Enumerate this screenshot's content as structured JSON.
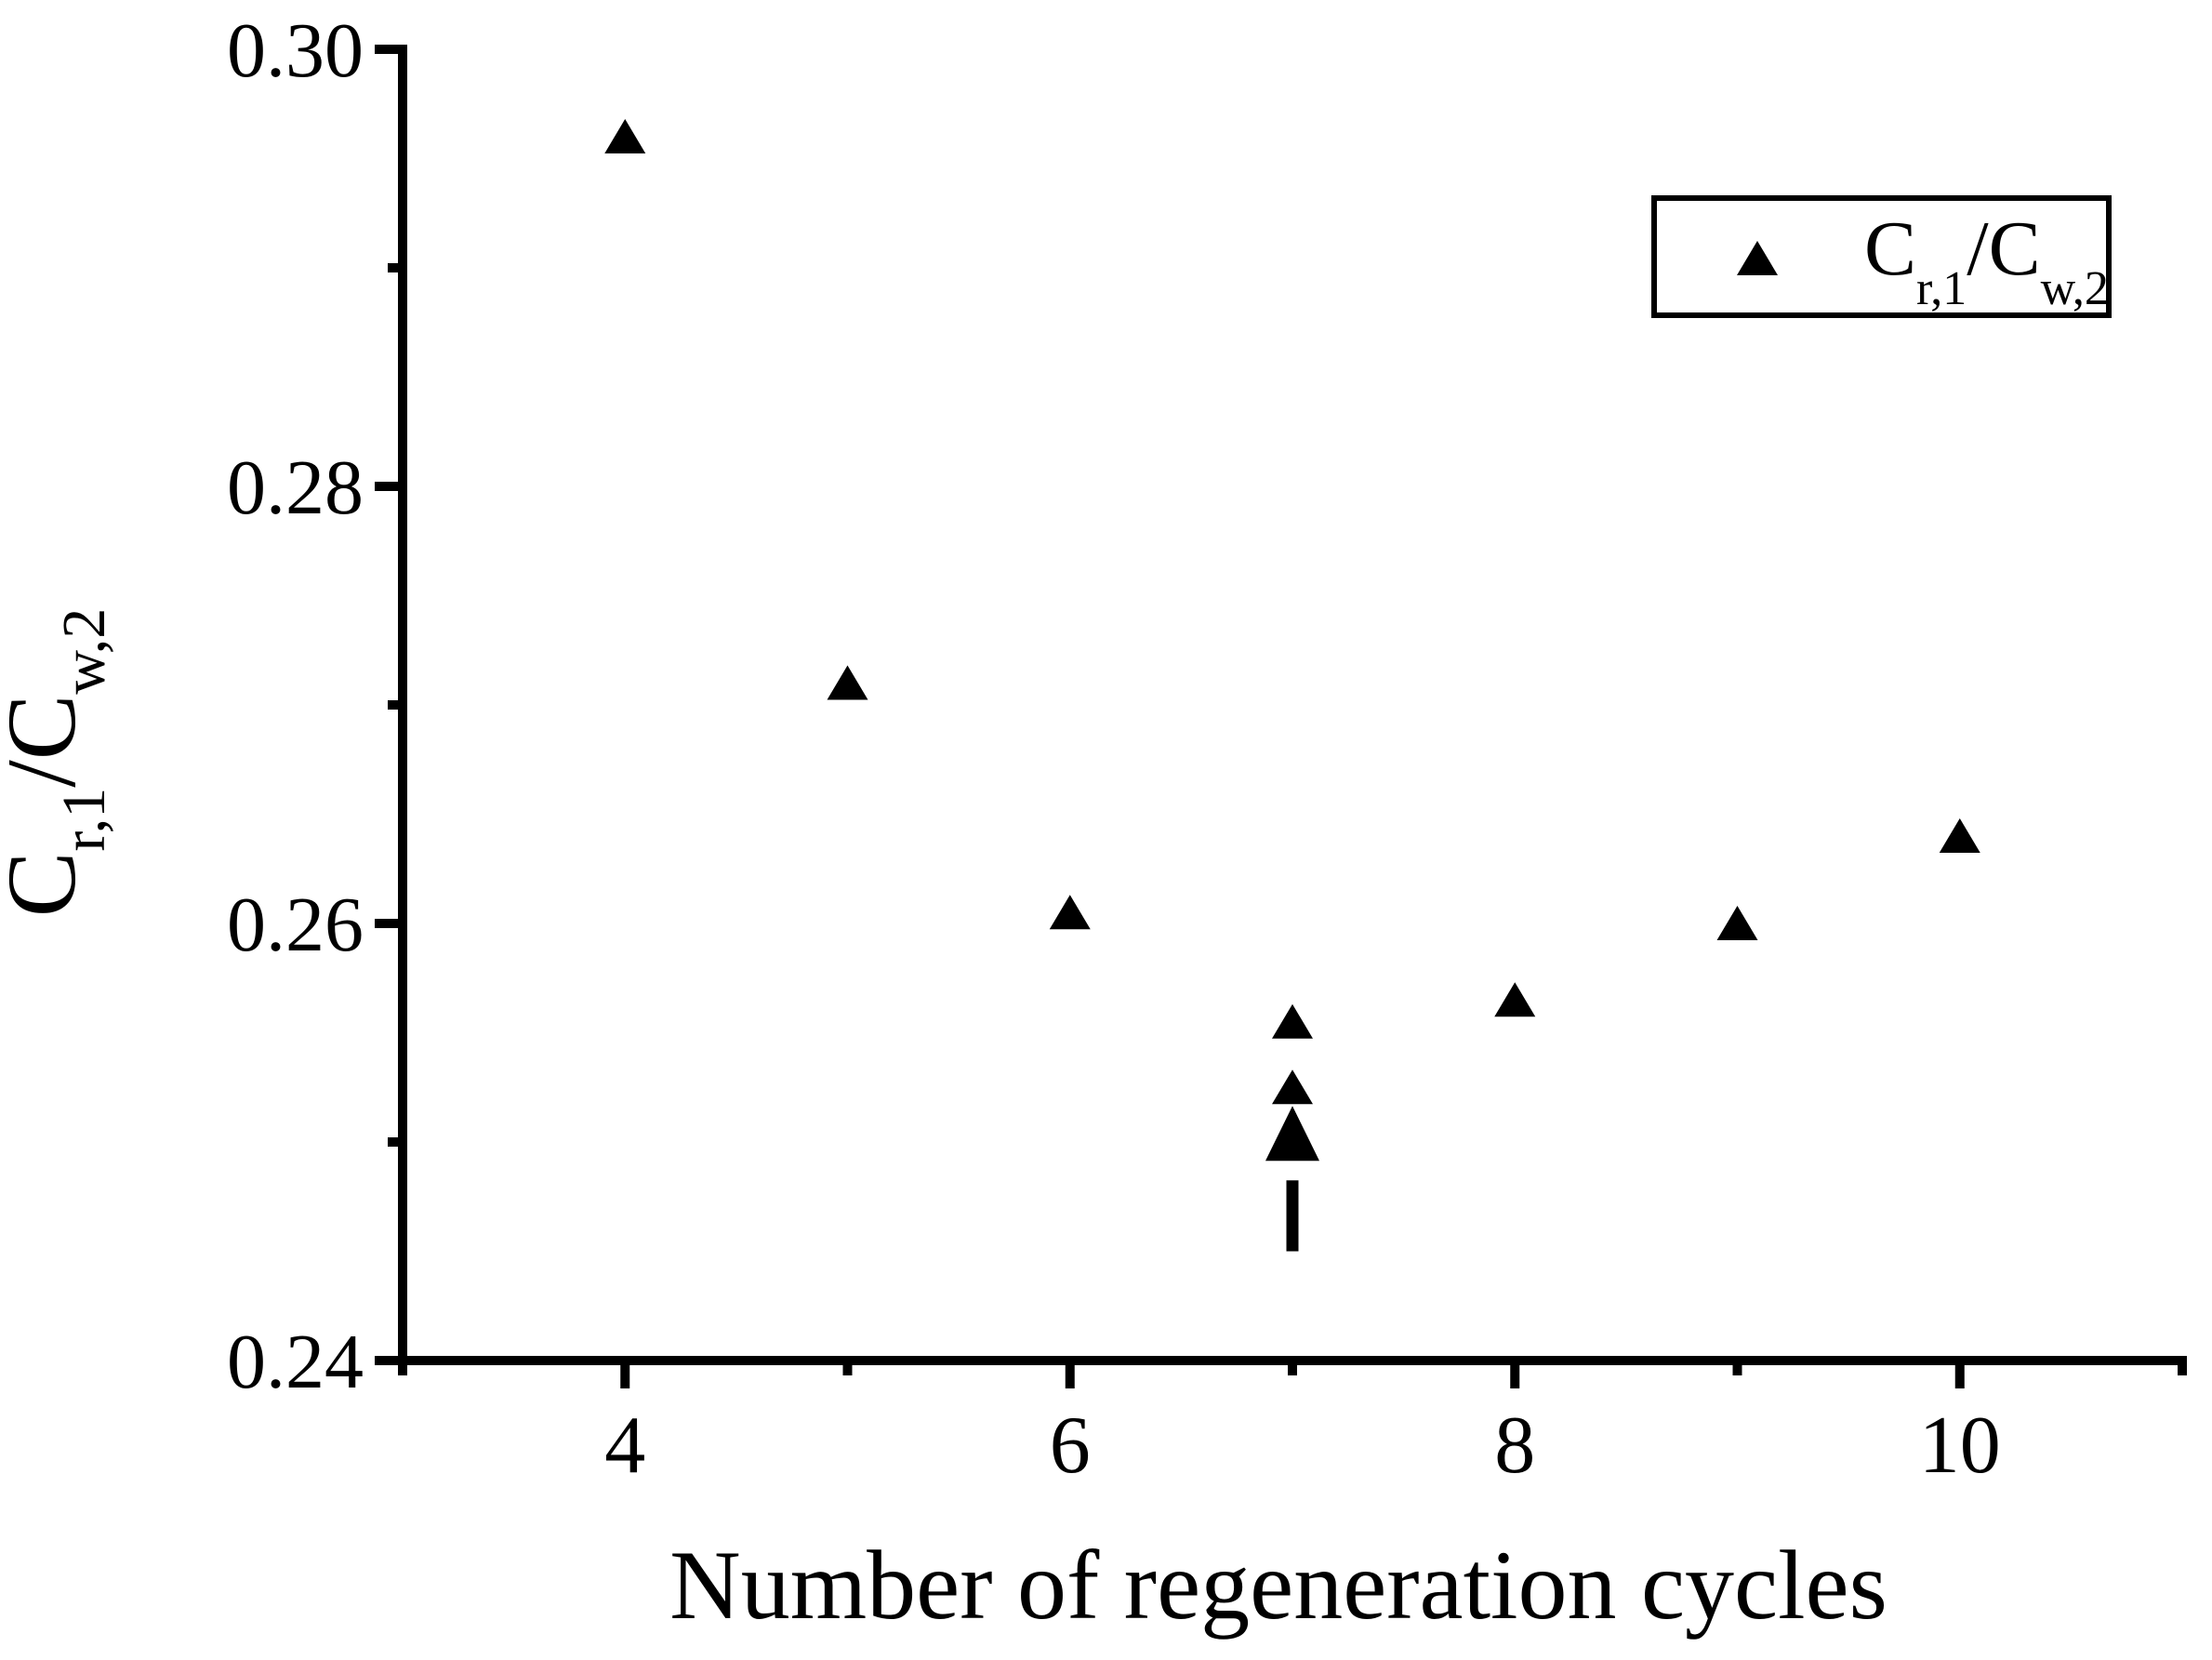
{
  "figure": {
    "background_color": "#ffffff",
    "ink_color": "#000000"
  },
  "chart_data": {
    "type": "scatter",
    "title": "",
    "xlabel": "Number of regeneration cycles",
    "ylabel_plain": "Cr,1/Cw,2",
    "ylabel_rich": [
      {
        "t": "C"
      },
      {
        "t": "r,1",
        "sub": true
      },
      {
        "t": "/C"
      },
      {
        "t": "w,2",
        "sub": true
      }
    ],
    "xlim": [
      3,
      11
    ],
    "ylim": [
      0.24,
      0.3
    ],
    "x_major_ticks": [
      4,
      6,
      8,
      10
    ],
    "x_tick_labels": [
      "4",
      "6",
      "8",
      "10"
    ],
    "x_minor_ticks": [
      3,
      5,
      7,
      9,
      11
    ],
    "y_major_ticks": [
      0.24,
      0.26,
      0.28,
      0.3
    ],
    "y_tick_labels": [
      "0.24",
      "0.26",
      "0.28",
      "0.30"
    ],
    "y_minor_ticks": [
      0.25,
      0.27,
      0.29
    ],
    "grid": false,
    "series": [
      {
        "name": "Cr,1/Cw,2",
        "marker": "filled-triangle-up",
        "color": "#000000",
        "points": [
          [
            4,
            0.296
          ],
          [
            5,
            0.271
          ],
          [
            6,
            0.2605
          ],
          [
            7,
            0.2555
          ],
          [
            7,
            0.2525
          ],
          [
            8,
            0.2565
          ],
          [
            9,
            0.26
          ],
          [
            10,
            0.264
          ]
        ]
      }
    ],
    "legend": {
      "position": "top-right",
      "entries": [
        {
          "marker": "filled-triangle-up",
          "label_plain": "Cr,1/Cw,2",
          "label_rich": [
            {
              "t": "C"
            },
            {
              "t": "r,1",
              "sub": true
            },
            {
              "t": "/C"
            },
            {
              "t": "w,2",
              "sub": true
            }
          ]
        }
      ]
    },
    "annotations": [
      {
        "type": "arrow",
        "direction": "up",
        "x": 7,
        "y_tail": 0.245,
        "y_head": 0.2505,
        "points_to_value": [
          7,
          0.2525
        ]
      }
    ]
  }
}
